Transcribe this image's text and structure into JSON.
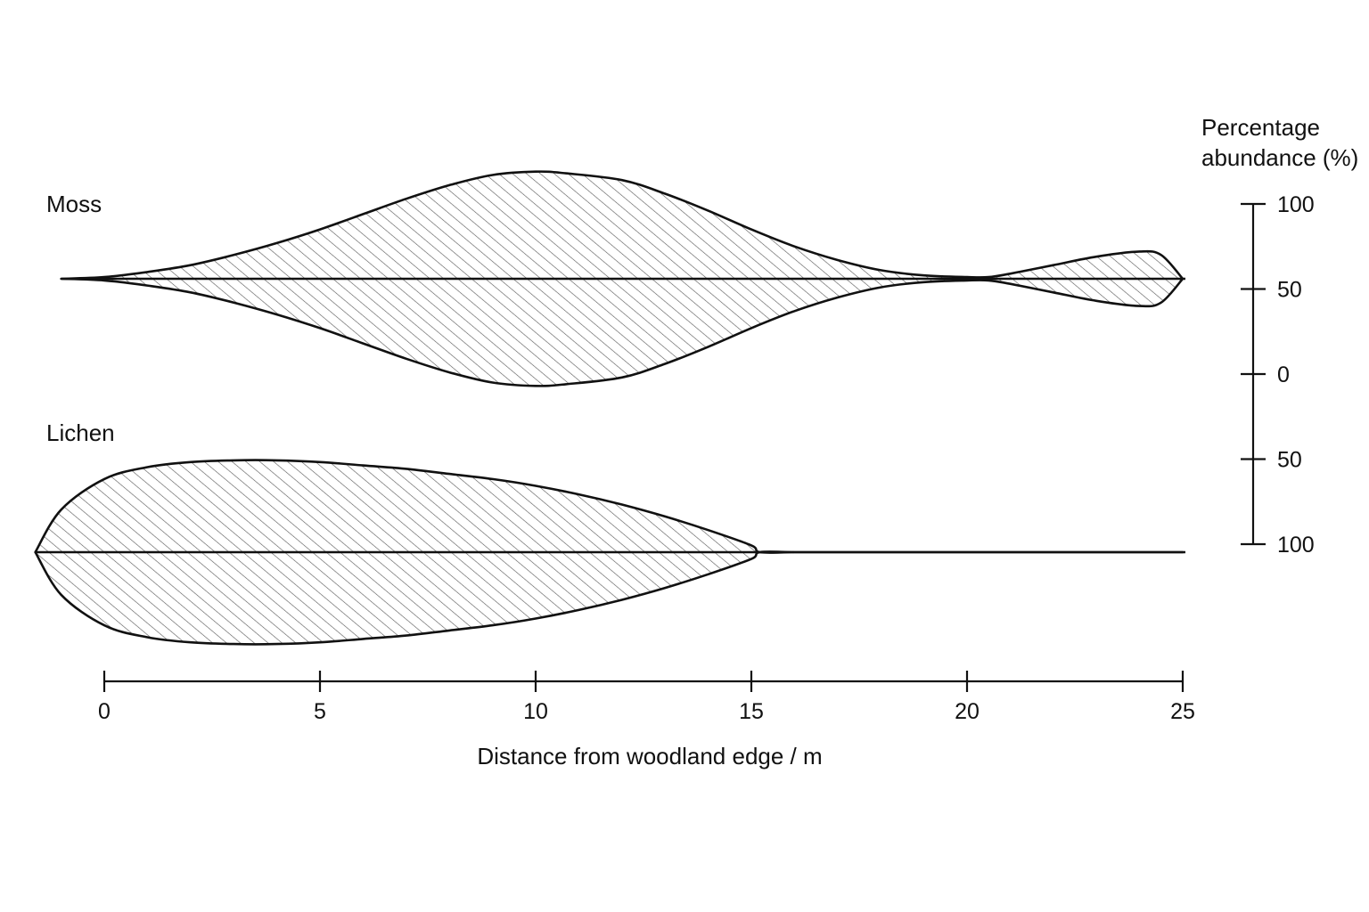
{
  "chart_data": {
    "type": "area",
    "subtype": "kite-diagram",
    "xlabel": "Distance from woodland edge / m",
    "scale_label_lines": [
      "Percentage",
      "abundance (%)"
    ],
    "xlim": [
      -1,
      25
    ],
    "x_ticks": [
      0,
      5,
      10,
      15,
      20,
      25
    ],
    "x_tick_labels": [
      "0",
      "5",
      "10",
      "15",
      "20",
      "25"
    ],
    "scale_ticks": [
      100,
      50,
      0,
      -50,
      -100
    ],
    "scale_tick_labels": [
      "100",
      "50",
      "0",
      "50",
      "100"
    ],
    "grid": false,
    "legend": "none",
    "colors": {
      "outline": "#111111",
      "hatch": "#555555",
      "fill": "#ffffff"
    },
    "series": [
      {
        "name": "Moss",
        "x": [
          -1,
          0,
          1,
          2,
          3,
          4,
          5,
          6,
          7,
          8,
          9,
          10,
          10.7,
          12,
          13,
          14,
          15,
          16,
          17,
          18,
          19,
          20,
          20.5,
          21,
          22,
          23,
          24,
          24.5,
          25
        ],
        "values": [
          0,
          1,
          4,
          8,
          14,
          21,
          29,
          38,
          47,
          55,
          61,
          63,
          62,
          58,
          50,
          40,
          29,
          19,
          11,
          5,
          2,
          1,
          1,
          3,
          8,
          13,
          16,
          14,
          0
        ]
      },
      {
        "name": "Lichen",
        "x": [
          -1.6,
          -1,
          0,
          1,
          2,
          3,
          4,
          5,
          6,
          7,
          8,
          9,
          10,
          11,
          12,
          13,
          14,
          15,
          15.2,
          16,
          17,
          18,
          19,
          20,
          21,
          22,
          23,
          24,
          25
        ],
        "values": [
          0,
          25,
          43,
          50,
          53,
          54,
          54,
          53,
          51,
          49,
          46,
          43,
          39,
          34,
          28,
          21,
          13,
          4,
          0,
          0,
          0,
          0,
          0,
          0,
          0,
          0,
          0,
          0,
          0
        ]
      }
    ]
  }
}
